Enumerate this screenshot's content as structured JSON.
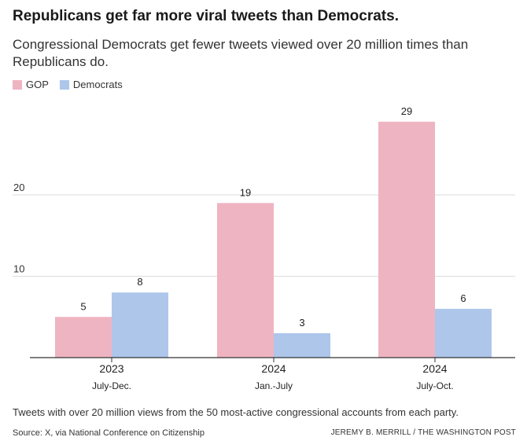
{
  "header": {
    "title": "Republicans get far more viral tweets than Democrats.",
    "subtitle": "Congressional Democrats get fewer tweets viewed over 20 million times than Republicans do."
  },
  "footer": {
    "note": "Tweets with over 20 million views from the 50 most-active congressional accounts from each party.",
    "source": "Source: X, via National Conference on Citizenship",
    "credit": "JEREMY B. MERRILL / THE WASHINGTON POST"
  },
  "chart_data": {
    "type": "bar",
    "title": "Republicans get far more viral tweets than Democrats.",
    "subtitle": "Congressional Democrats get fewer tweets viewed over 20 million times than Republicans do.",
    "categories": [
      {
        "year": "2023",
        "period": "July-Dec."
      },
      {
        "year": "2024",
        "period": "Jan.-July"
      },
      {
        "year": "2024",
        "period": "July-Oct."
      }
    ],
    "series": [
      {
        "name": "GOP",
        "color": "#efb4c1",
        "values": [
          5,
          19,
          29
        ]
      },
      {
        "name": "Democrats",
        "color": "#adc6ea",
        "values": [
          8,
          3,
          6
        ]
      }
    ],
    "yticks": [
      10,
      20
    ],
    "ylim": [
      0,
      30
    ],
    "xlabel": "",
    "ylabel": "",
    "legend": "top-left",
    "grid": true
  }
}
